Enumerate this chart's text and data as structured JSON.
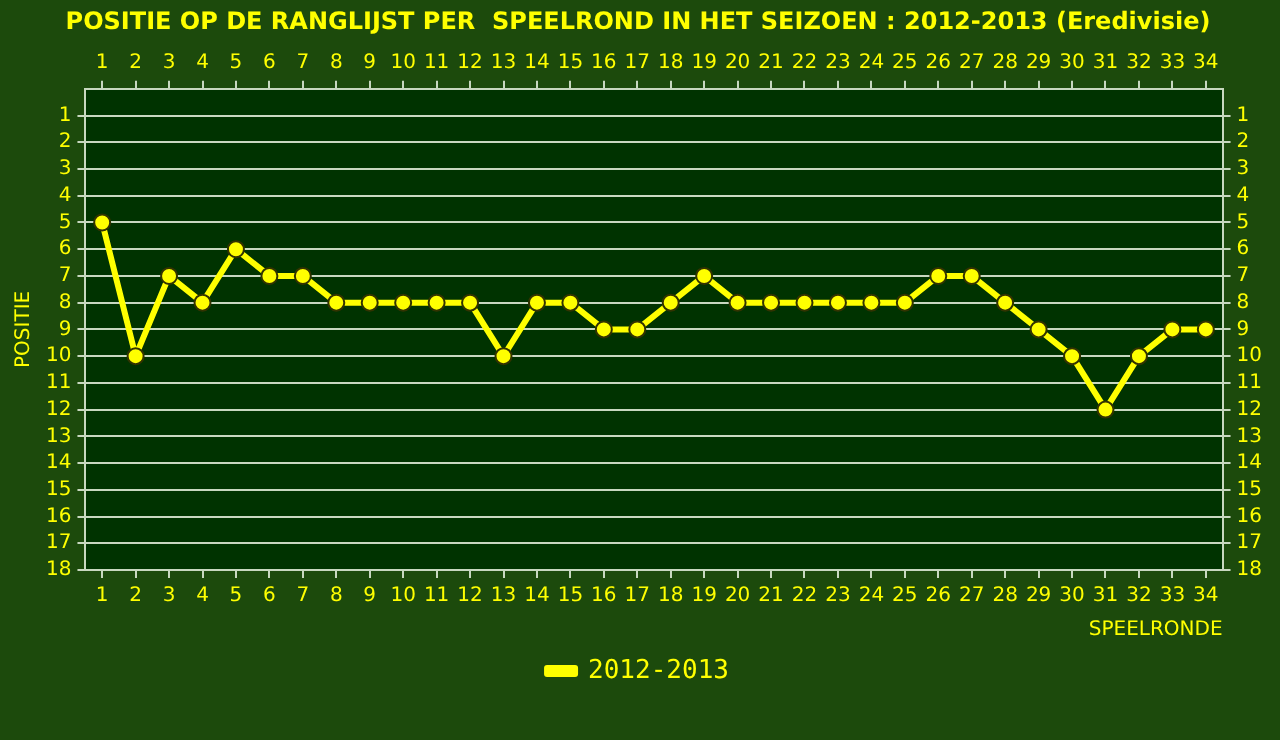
{
  "chart_data": {
    "type": "line",
    "title": "POSITIE OP DE RANGLIJST PER  SPEELROND IN HET SEIZOEN : 2012-2013 (Eredivisie)",
    "xlabel": "SPEELRONDE",
    "ylabel": "POSITIE",
    "x": [
      1,
      2,
      3,
      4,
      5,
      6,
      7,
      8,
      9,
      10,
      11,
      12,
      13,
      14,
      15,
      16,
      17,
      18,
      19,
      20,
      21,
      22,
      23,
      24,
      25,
      26,
      27,
      28,
      29,
      30,
      31,
      32,
      33,
      34
    ],
    "series": [
      {
        "name": "2012-2013",
        "color": "#ffff00",
        "values": [
          5,
          10,
          7,
          8,
          6,
          7,
          7,
          8,
          8,
          8,
          8,
          8,
          10,
          8,
          8,
          9,
          9,
          8,
          7,
          8,
          8,
          8,
          8,
          8,
          8,
          7,
          7,
          8,
          9,
          10,
          12,
          10,
          9,
          9
        ]
      }
    ],
    "xlim": [
      0.5,
      34.5
    ],
    "xticks": [
      1,
      2,
      3,
      4,
      5,
      6,
      7,
      8,
      9,
      10,
      11,
      12,
      13,
      14,
      15,
      16,
      17,
      18,
      19,
      20,
      21,
      22,
      23,
      24,
      25,
      26,
      27,
      28,
      29,
      30,
      31,
      32,
      33,
      34
    ],
    "x2lim": [
      0.5,
      34.5
    ],
    "x2ticks": [
      1,
      2,
      3,
      4,
      5,
      6,
      7,
      8,
      9,
      10,
      11,
      12,
      13,
      14,
      15,
      16,
      17,
      18,
      19,
      20,
      21,
      22,
      23,
      24,
      25,
      26,
      27,
      28,
      29,
      30,
      31,
      32,
      33,
      34
    ],
    "ylim": [
      18,
      0
    ],
    "yticks": [
      1,
      2,
      3,
      4,
      5,
      6,
      7,
      8,
      9,
      10,
      11,
      12,
      13,
      14,
      15,
      16,
      17,
      18
    ],
    "y2lim": [
      18,
      0
    ],
    "y2ticks": [
      1,
      2,
      3,
      4,
      5,
      6,
      7,
      8,
      9,
      10,
      11,
      12,
      13,
      14,
      15,
      16,
      17,
      18
    ],
    "grid": "y",
    "legend": "bottom",
    "marker": "circle",
    "line_style": "solid"
  }
}
